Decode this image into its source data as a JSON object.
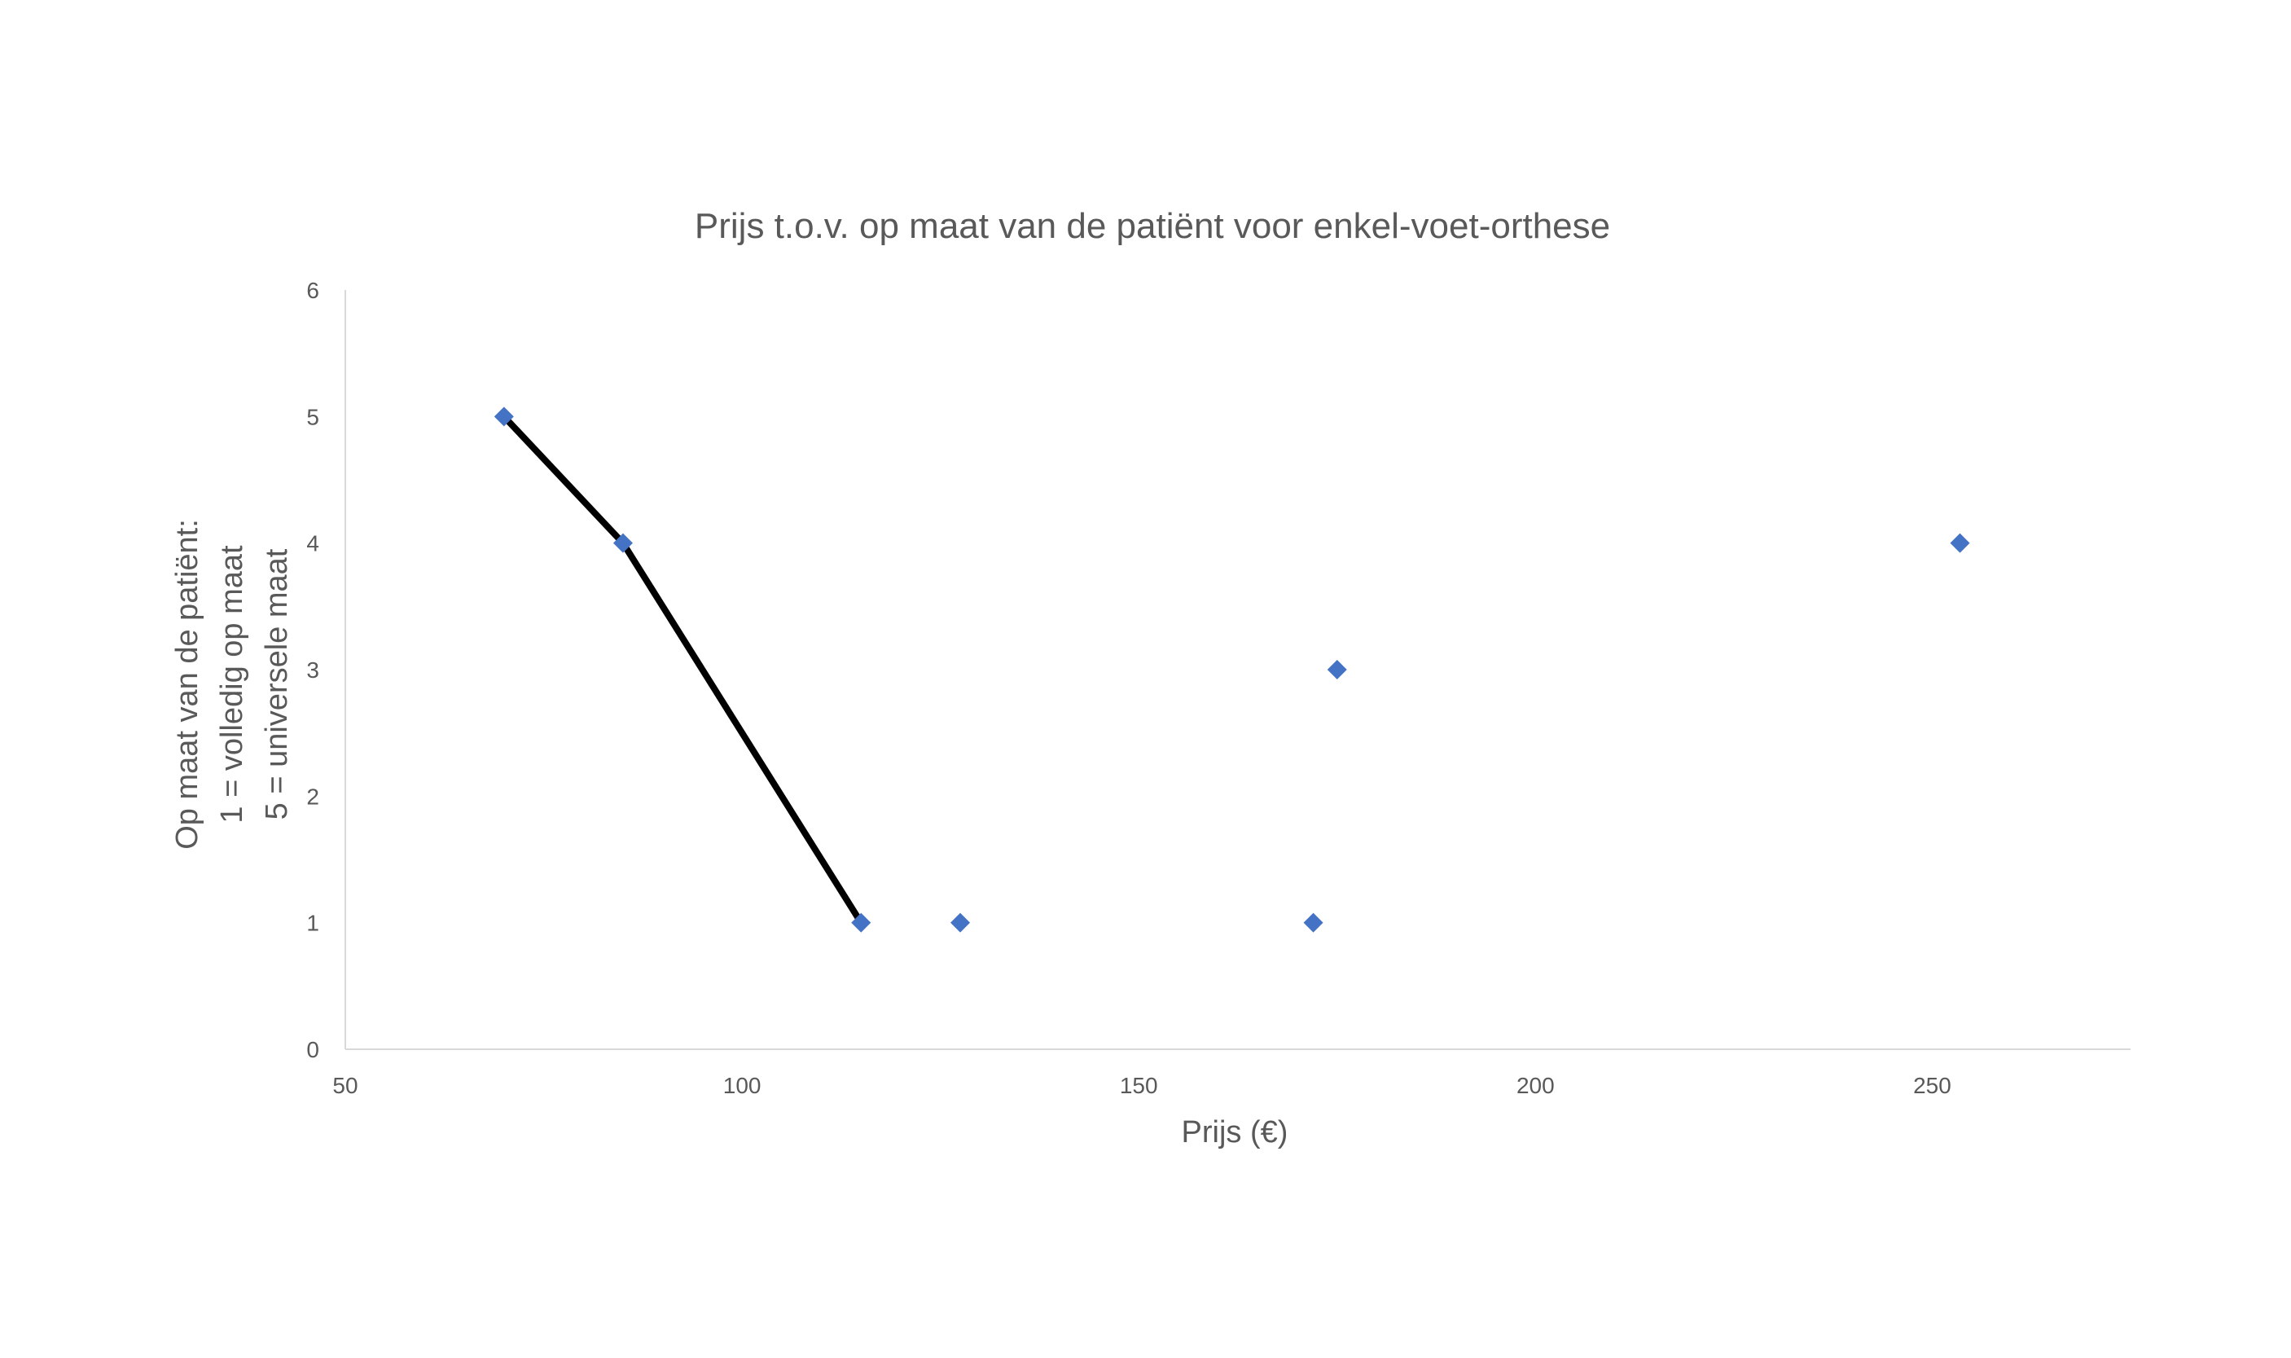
{
  "chart_data": {
    "type": "scatter",
    "title": "Prijs t.o.v. op maat van de patiënt voor enkel-voet-orthese",
    "xlabel": "Prijs (€)",
    "ylabel_lines": [
      "Op maat van de patiënt:",
      "1 = volledig op maat",
      "5 = universele maat"
    ],
    "xlim": [
      50,
      275
    ],
    "ylim": [
      0,
      6
    ],
    "x_ticks": [
      50,
      100,
      150,
      200,
      250
    ],
    "y_ticks": [
      0,
      1,
      2,
      3,
      4,
      5,
      6
    ],
    "grid": false,
    "marker_color": "#4472C4",
    "line_color": "#000000",
    "points": [
      {
        "x": 70,
        "y": 5
      },
      {
        "x": 85,
        "y": 4
      },
      {
        "x": 115,
        "y": 1
      },
      {
        "x": 127.5,
        "y": 1
      },
      {
        "x": 172,
        "y": 1
      },
      {
        "x": 175,
        "y": 3
      },
      {
        "x": 253.5,
        "y": 4
      }
    ],
    "frontier_line": [
      {
        "x": 70,
        "y": 5
      },
      {
        "x": 85,
        "y": 4
      },
      {
        "x": 115,
        "y": 1
      }
    ]
  }
}
